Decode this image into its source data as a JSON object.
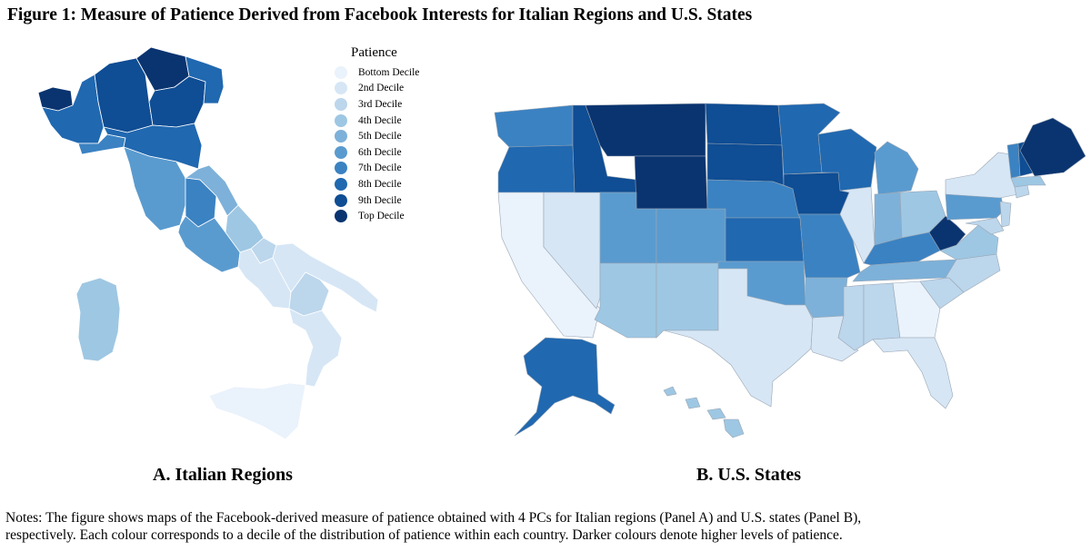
{
  "title": "Figure 1: Measure of Patience Derived from Facebook Interests for Italian Regions and U.S. States",
  "legend": {
    "title": "Patience",
    "items": [
      {
        "label": "Bottom Decile",
        "color": "#eaf2fb"
      },
      {
        "label": "2nd Decile",
        "color": "#d6e6f5"
      },
      {
        "label": "3rd Decile",
        "color": "#bcd6ec"
      },
      {
        "label": "4th Decile",
        "color": "#9ec7e3"
      },
      {
        "label": "5th Decile",
        "color": "#7db1d9"
      },
      {
        "label": "6th Decile",
        "color": "#5a9bcf"
      },
      {
        "label": "7th Decile",
        "color": "#3b82c2"
      },
      {
        "label": "8th Decile",
        "color": "#2068b0"
      },
      {
        "label": "9th Decile",
        "color": "#0f4d94"
      },
      {
        "label": "Top Decile",
        "color": "#0a3470"
      }
    ]
  },
  "panels": {
    "a_label": "A. Italian Regions",
    "b_label": "B. U.S. States"
  },
  "map_data": {
    "italy": [
      {
        "region": "Valle d'Aosta",
        "decile": 10
      },
      {
        "region": "Piedmont",
        "decile": 8
      },
      {
        "region": "Lombardy",
        "decile": 9
      },
      {
        "region": "Trentino-Alto Adige",
        "decile": 10
      },
      {
        "region": "Veneto",
        "decile": 9
      },
      {
        "region": "Friuli-Venezia Giulia",
        "decile": 8
      },
      {
        "region": "Liguria",
        "decile": 7
      },
      {
        "region": "Emilia-Romagna",
        "decile": 8
      },
      {
        "region": "Tuscany",
        "decile": 6
      },
      {
        "region": "Umbria",
        "decile": 7
      },
      {
        "region": "Marche",
        "decile": 5
      },
      {
        "region": "Lazio",
        "decile": 6
      },
      {
        "region": "Abruzzo",
        "decile": 4
      },
      {
        "region": "Molise",
        "decile": 3
      },
      {
        "region": "Campania",
        "decile": 2
      },
      {
        "region": "Apulia",
        "decile": 2
      },
      {
        "region": "Basilicata",
        "decile": 3
      },
      {
        "region": "Calabria",
        "decile": 2
      },
      {
        "region": "Sicily",
        "decile": 1
      },
      {
        "region": "Sardinia",
        "decile": 4
      }
    ],
    "usa": [
      {
        "state": "WA",
        "decile": 7
      },
      {
        "state": "OR",
        "decile": 8
      },
      {
        "state": "CA",
        "decile": 1
      },
      {
        "state": "NV",
        "decile": 2
      },
      {
        "state": "ID",
        "decile": 9
      },
      {
        "state": "MT",
        "decile": 10
      },
      {
        "state": "WY",
        "decile": 10
      },
      {
        "state": "UT",
        "decile": 6
      },
      {
        "state": "AZ",
        "decile": 4
      },
      {
        "state": "CO",
        "decile": 6
      },
      {
        "state": "NM",
        "decile": 4
      },
      {
        "state": "ND",
        "decile": 9
      },
      {
        "state": "SD",
        "decile": 9
      },
      {
        "state": "NE",
        "decile": 7
      },
      {
        "state": "KS",
        "decile": 8
      },
      {
        "state": "OK",
        "decile": 6
      },
      {
        "state": "TX",
        "decile": 2
      },
      {
        "state": "MN",
        "decile": 8
      },
      {
        "state": "IA",
        "decile": 9
      },
      {
        "state": "MO",
        "decile": 7
      },
      {
        "state": "AR",
        "decile": 5
      },
      {
        "state": "LA",
        "decile": 2
      },
      {
        "state": "WI",
        "decile": 8
      },
      {
        "state": "IL",
        "decile": 2
      },
      {
        "state": "MI",
        "decile": 6
      },
      {
        "state": "IN",
        "decile": 5
      },
      {
        "state": "OH",
        "decile": 4
      },
      {
        "state": "KY",
        "decile": 7
      },
      {
        "state": "TN",
        "decile": 5
      },
      {
        "state": "MS",
        "decile": 3
      },
      {
        "state": "AL",
        "decile": 3
      },
      {
        "state": "GA",
        "decile": 1
      },
      {
        "state": "FL",
        "decile": 2
      },
      {
        "state": "SC",
        "decile": 3
      },
      {
        "state": "NC",
        "decile": 3
      },
      {
        "state": "VA",
        "decile": 4
      },
      {
        "state": "WV",
        "decile": 10
      },
      {
        "state": "PA",
        "decile": 6
      },
      {
        "state": "NY",
        "decile": 2
      },
      {
        "state": "VT",
        "decile": 7
      },
      {
        "state": "NH",
        "decile": 9
      },
      {
        "state": "ME",
        "decile": 10
      },
      {
        "state": "MA",
        "decile": 4
      },
      {
        "state": "CT",
        "decile": 3
      },
      {
        "state": "NJ",
        "decile": 3
      },
      {
        "state": "MD",
        "decile": 3
      },
      {
        "state": "AK",
        "decile": 8
      },
      {
        "state": "HI",
        "decile": 4
      }
    ]
  },
  "notes": {
    "line1": "Notes: The figure shows maps of the Facebook-derived measure of patience obtained with 4 PCs for Italian regions (Panel A) and U.S. states (Panel B),",
    "line2": "respectively. Each colour corresponds to a decile of the distribution of patience within each country. Darker colours denote higher levels of patience."
  }
}
